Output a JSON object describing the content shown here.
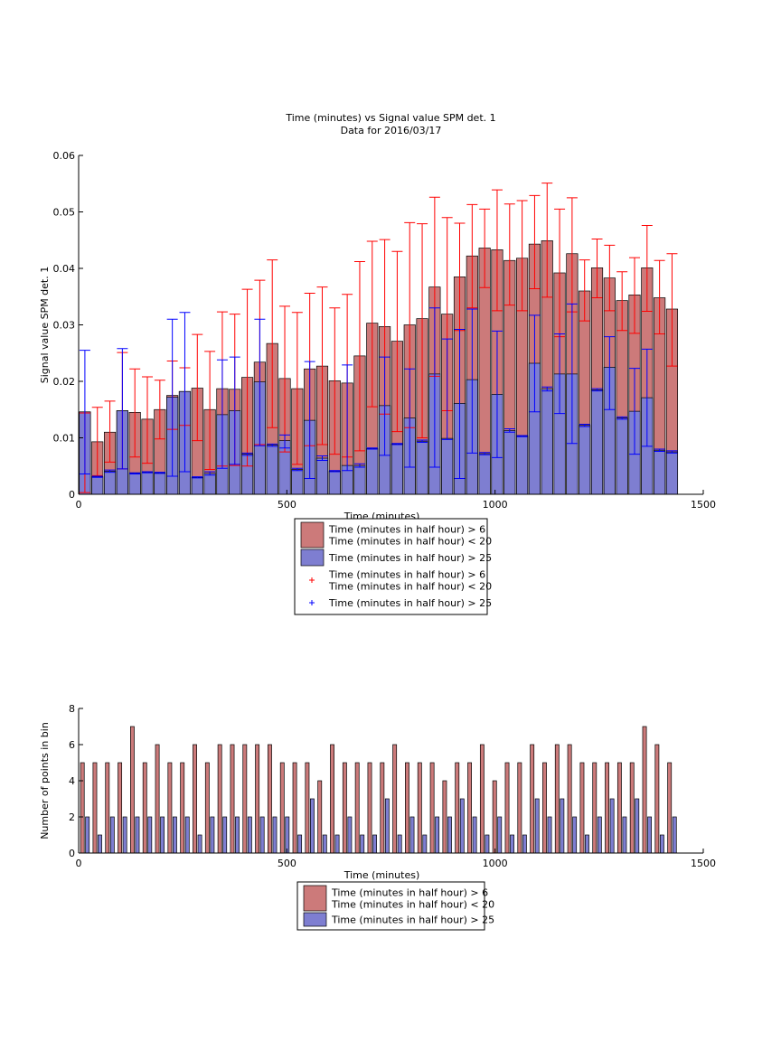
{
  "chart_data": [
    {
      "type": "bar",
      "title": "Time (minutes) vs Signal value SPM det. 1",
      "subtitle": "Data for 2016/03/17",
      "xlabel": "Time (minutes)",
      "ylabel": "Signal value SPM det. 1",
      "xlim": [
        0,
        1500
      ],
      "ylim": [
        0,
        0.06
      ],
      "xticks": [
        "0",
        "500",
        "1000",
        "1500"
      ],
      "yticks": [
        "0",
        "0.01",
        "0.02",
        "0.03",
        "0.04",
        "0.05",
        "0.06"
      ],
      "grid": false,
      "legend_position": "below",
      "x": [
        15,
        45,
        75,
        105,
        135,
        165,
        195,
        225,
        255,
        285,
        315,
        345,
        375,
        405,
        435,
        465,
        495,
        525,
        555,
        585,
        615,
        645,
        675,
        705,
        735,
        765,
        795,
        825,
        855,
        885,
        915,
        945,
        975,
        1005,
        1035,
        1065,
        1095,
        1125,
        1155,
        1185,
        1215,
        1245,
        1275,
        1305,
        1335,
        1365,
        1395,
        1425
      ],
      "bar_width": 27,
      "series": [
        {
          "name": "Time (minutes in half hour) > 6\nTime (minutes in half hour) < 20",
          "color": "#cc7a7a",
          "values": [
            0.0145,
            0.0093,
            0.011,
            0.0148,
            0.0145,
            0.0133,
            0.015,
            0.0175,
            0.0182,
            0.0188,
            0.015,
            0.0187,
            0.0186,
            0.0207,
            0.0234,
            0.0267,
            0.0205,
            0.0187,
            0.0222,
            0.0227,
            0.0201,
            0.0197,
            0.0245,
            0.0303,
            0.0297,
            0.0271,
            0.03,
            0.0311,
            0.0367,
            0.0319,
            0.0385,
            0.0422,
            0.0436,
            0.0433,
            0.0414,
            0.0418,
            0.0443,
            0.0449,
            0.0392,
            0.0426,
            0.036,
            0.0401,
            0.0383,
            0.0343,
            0.0353,
            0.0401,
            0.0348,
            0.0328
          ],
          "err_low": [
            0.0003,
            0.0033,
            0.0057,
            0.0045,
            0.0066,
            0.0055,
            0.0098,
            0.0115,
            0.0122,
            0.0095,
            0.0044,
            0.005,
            0.0051,
            0.005,
            0.0088,
            0.0118,
            0.0075,
            0.0053,
            0.0086,
            0.0088,
            0.0071,
            0.0066,
            0.0077,
            0.0155,
            0.0142,
            0.0111,
            0.0118,
            0.01,
            0.0209,
            0.0148,
            0.029,
            0.033,
            0.0366,
            0.0325,
            0.0335,
            0.0325,
            0.0364,
            0.0349,
            0.0279,
            0.0323,
            0.0307,
            0.0348,
            0.0325,
            0.029,
            0.0285,
            0.0324,
            0.0284,
            0.0227
          ],
          "err_high": [
            0.0144,
            0.0154,
            0.0165,
            0.0251,
            0.0222,
            0.0208,
            0.0202,
            0.0236,
            0.0224,
            0.0283,
            0.0253,
            0.0323,
            0.0319,
            0.0363,
            0.0379,
            0.0415,
            0.0333,
            0.0322,
            0.0356,
            0.0367,
            0.033,
            0.0354,
            0.0412,
            0.0448,
            0.0451,
            0.043,
            0.0481,
            0.0479,
            0.0526,
            0.049,
            0.048,
            0.0513,
            0.0505,
            0.0539,
            0.0514,
            0.052,
            0.0529,
            0.0551,
            0.0505,
            0.0525,
            0.0415,
            0.0452,
            0.0441,
            0.0394,
            0.0419,
            0.0476,
            0.0414,
            0.0426
          ]
        },
        {
          "name": "Time (minutes in half hour) > 25",
          "color": "#7e7ed1",
          "values": [
            0.0146,
            0.0031,
            0.0041,
            0.0148,
            0.0037,
            0.0039,
            0.0038,
            0.0172,
            0.0182,
            0.003,
            0.0037,
            0.0141,
            0.0148,
            0.0071,
            0.0199,
            0.0087,
            0.0095,
            0.0044,
            0.0131,
            0.0064,
            0.0041,
            0.0051,
            0.0051,
            0.0081,
            0.0157,
            0.0089,
            0.0135,
            0.0094,
            0.0213,
            0.0099,
            0.0161,
            0.0203,
            0.0072,
            0.0177,
            0.0113,
            0.0103,
            0.0232,
            0.0187,
            0.0213,
            0.0213,
            0.0122,
            0.0185,
            0.0225,
            0.0135,
            0.0147,
            0.0171,
            0.0078,
            0.0075
          ],
          "err_low": [
            0.0036,
            0.003,
            0.0039,
            0.0045,
            0.0036,
            0.0038,
            0.0037,
            0.0032,
            0.004,
            0.0029,
            0.0034,
            0.0046,
            0.0053,
            0.0069,
            0.0086,
            0.0085,
            0.0082,
            0.0042,
            0.0028,
            0.006,
            0.004,
            0.0042,
            0.0048,
            0.008,
            0.0069,
            0.0088,
            0.0048,
            0.0092,
            0.0048,
            0.0097,
            0.0028,
            0.0073,
            0.007,
            0.0065,
            0.011,
            0.0102,
            0.0146,
            0.0183,
            0.0143,
            0.009,
            0.012,
            0.0183,
            0.015,
            0.0133,
            0.0071,
            0.0085,
            0.0076,
            0.0073
          ],
          "err_high": [
            0.0255,
            0.0032,
            0.0043,
            0.0258,
            0.0038,
            0.004,
            0.0039,
            0.031,
            0.0322,
            0.0031,
            0.004,
            0.0238,
            0.0243,
            0.0073,
            0.031,
            0.0089,
            0.0105,
            0.0046,
            0.0235,
            0.0068,
            0.0042,
            0.0229,
            0.0054,
            0.0082,
            0.0243,
            0.009,
            0.0222,
            0.0096,
            0.033,
            0.0275,
            0.0292,
            0.0328,
            0.0074,
            0.0289,
            0.0116,
            0.0104,
            0.0317,
            0.019,
            0.0284,
            0.0337,
            0.0124,
            0.0187,
            0.0279,
            0.0137,
            0.0223,
            0.0257,
            0.008,
            0.0077
          ]
        }
      ],
      "legend": [
        {
          "kind": "patch",
          "color": "#cc7a7a",
          "label": "Time (minutes in half hour) > 6\nTime (minutes in half hour) < 20"
        },
        {
          "kind": "patch",
          "color": "#7e7ed1",
          "label": "Time (minutes in half hour) > 25"
        },
        {
          "kind": "marker",
          "color": "#ff0000",
          "label": "Time (minutes in half hour) > 6\nTime (minutes in half hour) < 20"
        },
        {
          "kind": "marker",
          "color": "#0000ff",
          "label": "Time (minutes in half hour) > 25"
        }
      ]
    },
    {
      "type": "bar",
      "xlabel": "Time (minutes)",
      "ylabel": "Number of points in bin",
      "xlim": [
        0,
        1500
      ],
      "ylim": [
        0,
        8
      ],
      "xticks": [
        "0",
        "500",
        "1000",
        "1500"
      ],
      "yticks": [
        "0",
        "2",
        "4",
        "6",
        "8"
      ],
      "grid": false,
      "legend_position": "below",
      "x": [
        15,
        45,
        75,
        105,
        135,
        165,
        195,
        225,
        255,
        285,
        315,
        345,
        375,
        405,
        435,
        465,
        495,
        525,
        555,
        585,
        615,
        645,
        675,
        705,
        735,
        765,
        795,
        825,
        855,
        885,
        915,
        945,
        975,
        1005,
        1035,
        1065,
        1095,
        1125,
        1155,
        1185,
        1215,
        1245,
        1275,
        1305,
        1335,
        1365,
        1395,
        1425
      ],
      "series": [
        {
          "name": "Time (minutes in half hour) > 6\nTime (minutes in half hour) < 20",
          "color": "#cc7a7a",
          "values": [
            5,
            5,
            5,
            5,
            7,
            5,
            6,
            5,
            5,
            6,
            5,
            6,
            6,
            6,
            6,
            6,
            5,
            5,
            5,
            4,
            6,
            5,
            5,
            5,
            5,
            6,
            5,
            5,
            5,
            4,
            5,
            5,
            6,
            4,
            5,
            5,
            6,
            5,
            6,
            6,
            5,
            5,
            5,
            5,
            5,
            7,
            6,
            5
          ]
        },
        {
          "name": "Time (minutes in half hour) > 25",
          "color": "#7e7ed1",
          "values": [
            2,
            1,
            2,
            2,
            2,
            2,
            2,
            2,
            2,
            1,
            2,
            2,
            2,
            2,
            2,
            2,
            2,
            1,
            3,
            1,
            1,
            2,
            1,
            1,
            3,
            1,
            2,
            1,
            2,
            2,
            3,
            2,
            1,
            2,
            1,
            1,
            3,
            2,
            3,
            2,
            1,
            2,
            3,
            2,
            3,
            2,
            1,
            2
          ]
        }
      ],
      "legend": [
        {
          "kind": "patch",
          "color": "#cc7a7a",
          "label": "Time (minutes in half hour) > 6\nTime (minutes in half hour) < 20"
        },
        {
          "kind": "patch",
          "color": "#7e7ed1",
          "label": "Time (minutes in half hour) > 25"
        }
      ]
    }
  ]
}
